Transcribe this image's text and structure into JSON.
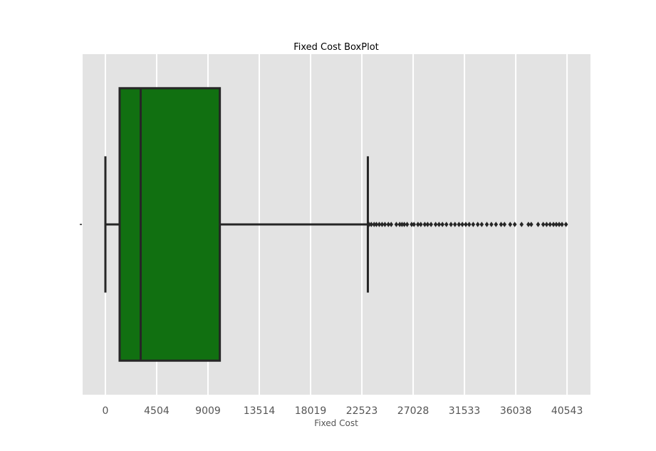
{
  "chart_data": {
    "type": "box",
    "title": "Fixed Cost BoxPlot",
    "xlabel": "Fixed Cost",
    "ylabel": "",
    "xlim": [
      -2000,
      42600
    ],
    "x_ticks": [
      0,
      4504,
      9009,
      13514,
      18019,
      22523,
      27028,
      31533,
      36038,
      40543
    ],
    "grid": true,
    "orientation": "horizontal",
    "box": {
      "whisker_low": 0,
      "q1": 1250,
      "median": 3100,
      "q3": 10050,
      "whisker_high": 23050
    },
    "outliers": [
      23150,
      23350,
      23600,
      23800,
      24050,
      24300,
      24550,
      24850,
      25100,
      25550,
      25850,
      26050,
      26250,
      26500,
      26900,
      27100,
      27450,
      27700,
      28050,
      28300,
      28600,
      29000,
      29300,
      29600,
      29950,
      30350,
      30700,
      31050,
      31350,
      31650,
      31950,
      32300,
      32700,
      33050,
      33500,
      33900,
      34300,
      34750,
      35050,
      35550,
      35950,
      36550,
      37150,
      37400,
      38000,
      38450,
      38750,
      39050,
      39350,
      39600,
      39850,
      40100,
      40450
    ],
    "colors": {
      "box_fill": "#117011",
      "lines": "#262626",
      "plot_background": "#e3e3e3",
      "grid": "#ffffff"
    }
  }
}
